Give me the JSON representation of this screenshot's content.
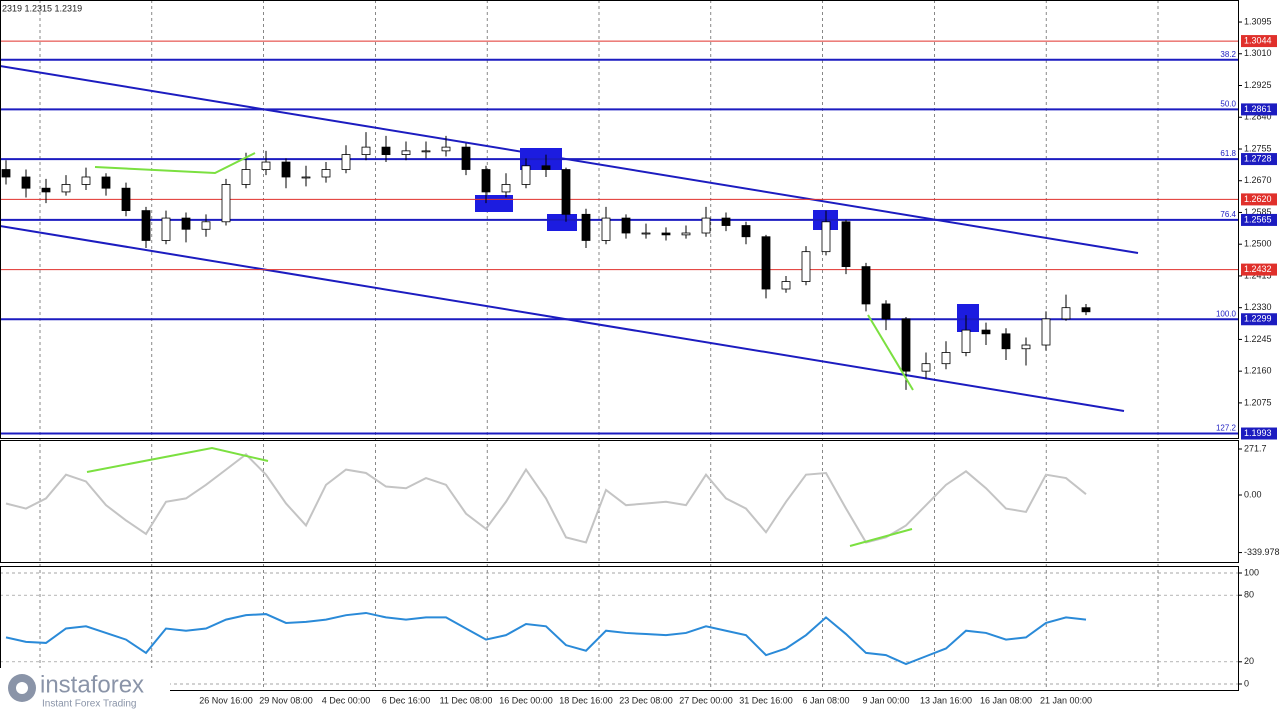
{
  "chart_data": [
    {
      "type": "candlestick",
      "title": "2319 1.2315 1.2319",
      "categories": [
        null,
        null,
        null,
        null,
        null,
        null,
        null,
        null,
        null,
        null,
        null,
        "26 Nov 16:00",
        null,
        null,
        "29 Nov 08:00",
        null,
        null,
        "4 Dec 00:00",
        null,
        null,
        "6 Dec 16:00",
        null,
        null,
        "11 Dec 08:00",
        null,
        null,
        "16 Dec 00:00",
        null,
        null,
        "18 Dec 16:00",
        null,
        null,
        "23 Dec 08:00",
        null,
        null,
        "27 Dec 00:00",
        null,
        null,
        "31 Dec 16:00",
        null,
        null,
        "6 Jan 08:00",
        null,
        null,
        "9 Jan 00:00",
        null,
        null,
        "13 Jan 16:00",
        null,
        null,
        "16 Jan 08:00",
        null,
        null,
        "21 Jan 00:00",
        null
      ],
      "open": [
        1.27,
        1.268,
        1.265,
        1.264,
        1.266,
        1.268,
        1.265,
        1.259,
        1.251,
        1.257,
        1.254,
        1.256,
        1.266,
        1.27,
        1.272,
        1.268,
        1.268,
        1.27,
        1.274,
        1.276,
        1.274,
        1.275,
        1.275,
        1.276,
        1.27,
        1.264,
        1.266,
        1.271,
        1.27,
        1.258,
        1.251,
        1.257,
        1.253,
        1.253,
        1.2525,
        1.253,
        1.257,
        1.255,
        1.252,
        1.238,
        1.24,
        1.248,
        1.256,
        1.244,
        1.234,
        1.23,
        1.216,
        1.218,
        1.221,
        1.227,
        1.226,
        1.222,
        1.223,
        1.23,
        1.233
      ],
      "high": [
        1.2725,
        1.27,
        1.2675,
        1.2685,
        1.2705,
        1.269,
        1.2665,
        1.26,
        1.259,
        1.2585,
        1.258,
        1.2675,
        1.2745,
        1.275,
        1.273,
        1.271,
        1.272,
        1.2765,
        1.28,
        1.279,
        1.2775,
        1.2775,
        1.279,
        1.277,
        1.271,
        1.269,
        1.273,
        1.274,
        1.2705,
        1.2595,
        1.26,
        1.258,
        1.2555,
        1.2545,
        1.255,
        1.26,
        1.2585,
        1.256,
        1.2525,
        1.2415,
        1.2495,
        1.259,
        1.2565,
        1.245,
        1.235,
        1.2305,
        1.221,
        1.224,
        1.231,
        1.229,
        1.2275,
        1.225,
        1.232,
        1.2365,
        1.234
      ],
      "low": [
        1.266,
        1.2625,
        1.261,
        1.263,
        1.2645,
        1.263,
        1.2575,
        1.249,
        1.25,
        1.2505,
        1.252,
        1.255,
        1.265,
        1.2685,
        1.265,
        1.2655,
        1.2665,
        1.269,
        1.2725,
        1.272,
        1.2725,
        1.273,
        1.2735,
        1.2685,
        1.261,
        1.2625,
        1.265,
        1.268,
        1.256,
        1.249,
        1.25,
        1.2515,
        1.2515,
        1.251,
        1.2515,
        1.252,
        1.2535,
        1.25,
        1.2355,
        1.237,
        1.239,
        1.247,
        1.242,
        1.232,
        1.227,
        1.211,
        1.214,
        1.2165,
        1.22,
        1.223,
        1.219,
        1.2175,
        1.2215,
        1.2295,
        1.231
      ],
      "close": [
        1.268,
        1.265,
        1.264,
        1.266,
        1.268,
        1.265,
        1.259,
        1.251,
        1.257,
        1.254,
        1.256,
        1.266,
        1.27,
        1.272,
        1.268,
        1.268,
        1.27,
        1.274,
        1.276,
        1.274,
        1.275,
        1.275,
        1.276,
        1.27,
        1.264,
        1.266,
        1.271,
        1.27,
        1.258,
        1.251,
        1.257,
        1.253,
        1.253,
        1.2525,
        1.253,
        1.257,
        1.255,
        1.252,
        1.238,
        1.24,
        1.248,
        1.256,
        1.244,
        1.234,
        1.23,
        1.216,
        1.218,
        1.221,
        1.227,
        1.226,
        1.222,
        1.223,
        1.23,
        1.233,
        1.2319
      ],
      "ylim": [
        1.1981,
        1.3154
      ],
      "yticks": [
        1.3095,
        {
          "value": 1.301,
          "label": "1.3010"
        },
        1.2925,
        {
          "value": 1.284,
          "label": "1.2840"
        },
        1.2755,
        {
          "value": 1.267,
          "label": "1.2670"
        },
        1.2585,
        {
          "value": 1.25,
          "label": "1.2500"
        },
        1.2415,
        {
          "value": 1.233,
          "label": "1.2330"
        },
        1.2245,
        {
          "value": 1.216,
          "label": "1.2160"
        },
        1.2075
      ],
      "levels": [
        {
          "value": 1.3044,
          "label": "1.3044",
          "color": "#e0302b"
        },
        {
          "value": 1.2994,
          "fib": "38.2",
          "color": "#1c1cc0"
        },
        {
          "value": 1.2861,
          "label": "1.2861",
          "fib": "50.0",
          "color": "#1c1cc0"
        },
        {
          "value": 1.2728,
          "label": "1.2728",
          "fib": "61.8",
          "color": "#1c1cc0"
        },
        {
          "value": 1.262,
          "label": "1.2620",
          "color": "#e0302b"
        },
        {
          "value": 1.2565,
          "label": "1.2565",
          "fib": "76.4",
          "color": "#1c1cc0"
        },
        {
          "value": 1.2432,
          "label": "1.2432",
          "color": "#e0302b"
        },
        {
          "value": 1.2299,
          "label": "1.2299",
          "fib": "100.0",
          "color": "#1c1cc0"
        },
        {
          "value": 1.1993,
          "label": "1.1993",
          "fib": "127.2",
          "color": "#1c1cc0"
        }
      ]
    },
    {
      "type": "line",
      "color": "#c4c4c4",
      "values": [
        -50,
        -80,
        -20,
        120,
        80,
        -60,
        -150,
        -230,
        -40,
        -20,
        60,
        150,
        240,
        120,
        -50,
        -180,
        60,
        150,
        130,
        50,
        40,
        100,
        60,
        -110,
        -200,
        -40,
        150,
        -20,
        -250,
        -280,
        30,
        -60,
        -50,
        -40,
        -60,
        120,
        -20,
        -80,
        -220,
        -40,
        120,
        130,
        -80,
        -280,
        -250,
        -180,
        -60,
        60,
        140,
        40,
        -80,
        -100,
        120,
        100,
        5
      ],
      "ylim": [
        -395.7,
        324.9
      ],
      "yticks": [
        271.7,
        {
          "value": 0,
          "label": "0.00"
        },
        -339.978
      ]
    },
    {
      "type": "line",
      "color": "#2a8ad8",
      "values": [
        42,
        38,
        37,
        50,
        52,
        46,
        40,
        28,
        50,
        48,
        50,
        58,
        62,
        63,
        55,
        56,
        58,
        62,
        64,
        60,
        58,
        60,
        60,
        50,
        40,
        44,
        54,
        52,
        35,
        30,
        48,
        46,
        45,
        44,
        46,
        52,
        48,
        44,
        26,
        32,
        44,
        60,
        45,
        28,
        26,
        18,
        25,
        32,
        48,
        46,
        40,
        42,
        55,
        60,
        58
      ],
      "ylim": [
        -5.4,
        106.3
      ],
      "yticks": [
        100,
        80,
        20,
        0
      ],
      "grid": true
    }
  ],
  "watermark": {
    "brand": "instaforex",
    "tagline": "Instant Forex Trading"
  }
}
